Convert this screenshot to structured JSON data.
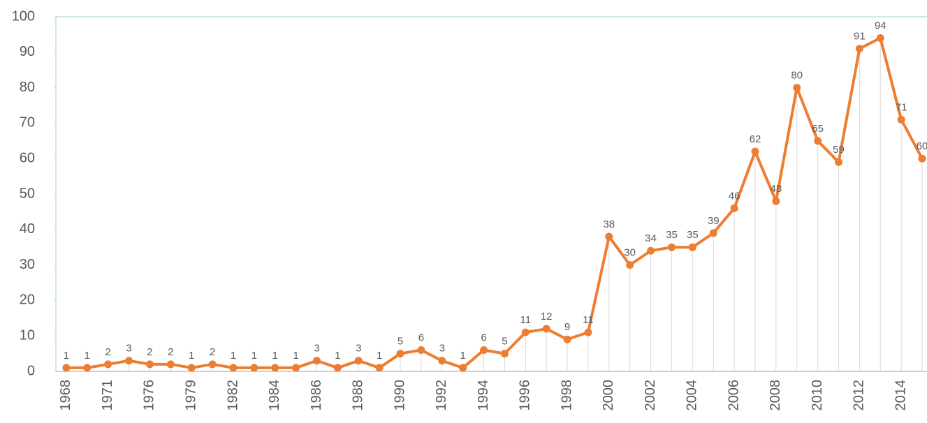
{
  "chart_data": {
    "type": "line",
    "categories": [
      "1968",
      null,
      "1971",
      null,
      "1976",
      null,
      "1979",
      null,
      "1982",
      null,
      "1984",
      null,
      "1986",
      null,
      "1988",
      null,
      "1990",
      null,
      "1992",
      null,
      "1994",
      null,
      "1996",
      null,
      "1998",
      null,
      "2000",
      null,
      "2002",
      null,
      "2004",
      null,
      "2006",
      null,
      "2008",
      null,
      "2010",
      null,
      "2012",
      null,
      "2014",
      null
    ],
    "series": [
      {
        "color": "#ED7D31",
        "values": [
          1,
          1,
          2,
          3,
          2,
          2,
          1,
          2,
          1,
          1,
          1,
          1,
          3,
          1,
          3,
          1,
          5,
          6,
          3,
          1,
          6,
          5,
          11,
          12,
          9,
          11,
          38,
          30,
          34,
          35,
          35,
          39,
          46,
          62,
          48,
          80,
          65,
          59,
          91,
          94,
          71,
          60
        ]
      }
    ],
    "ylim": [
      0,
      100
    ],
    "yticks": [
      0,
      10,
      20,
      30,
      40,
      50,
      60,
      70,
      80,
      90,
      100
    ],
    "drop_lines": true,
    "data_labels": true
  }
}
